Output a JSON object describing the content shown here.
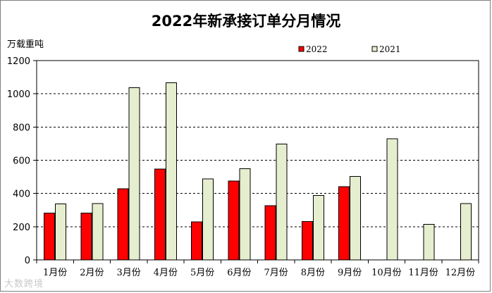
{
  "chart_data": {
    "type": "bar",
    "title": "2022年新承接订单分月情况",
    "ylabel": "万载重吨",
    "xlabel": "",
    "categories": [
      "1月份",
      "2月份",
      "3月份",
      "4月份",
      "5月份",
      "6月份",
      "7月份",
      "8月份",
      "9月份",
      "10月份",
      "11月份",
      "12月份"
    ],
    "ylim": [
      0,
      1200
    ],
    "yticks": [
      0,
      200,
      400,
      600,
      800,
      1000,
      1200
    ],
    "grid": "horizontal-dashed",
    "legend_position": "top-right",
    "series": [
      {
        "name": "2022",
        "color": "#ff0000",
        "values": [
          282,
          282,
          428,
          547,
          228,
          475,
          326,
          231,
          440,
          null,
          null,
          null
        ]
      },
      {
        "name": "2021",
        "color": "#e5eecf",
        "values": [
          338,
          340,
          1037,
          1066,
          487,
          550,
          697,
          388,
          502,
          730,
          215,
          340
        ]
      }
    ]
  },
  "watermark": "大数跨境"
}
